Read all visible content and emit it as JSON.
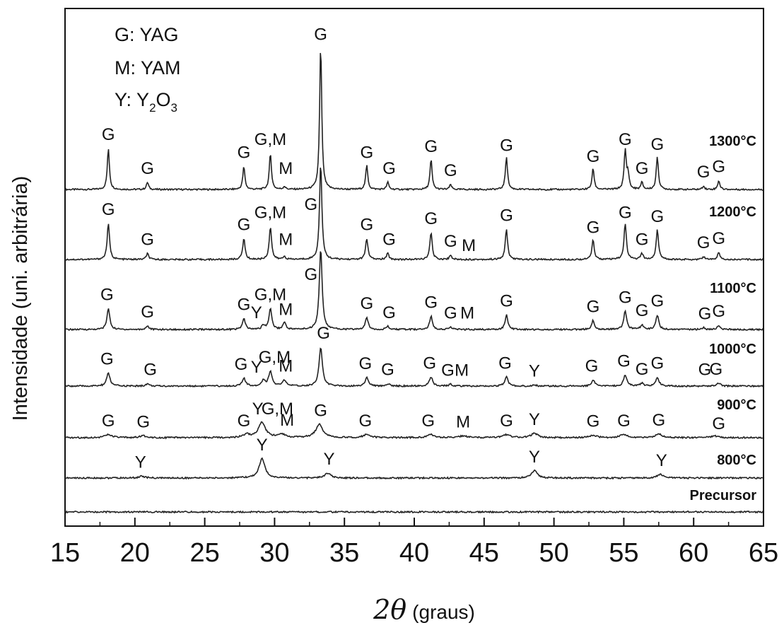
{
  "chart_data": {
    "type": "line",
    "title": "",
    "xlabel": {
      "symbol": "2θ",
      "unit": "(graus)"
    },
    "ylabel": "Intensidade (uni. arbitrária)",
    "xlim": [
      15,
      65
    ],
    "x_ticks": [
      "15",
      "20",
      "25",
      "30",
      "35",
      "40",
      "45",
      "50",
      "55",
      "60",
      "65"
    ],
    "grid": false,
    "legend": {
      "placement": "top-left",
      "entries": [
        {
          "letter": "G",
          "text": ": YAG"
        },
        {
          "letter": "M",
          "text": ": YAM"
        },
        {
          "letter": "Y",
          "text": ": Y",
          "sub1": "2",
          "mid": "O",
          "sub2": "3"
        }
      ]
    },
    "series": [
      {
        "name": "1300°C",
        "peaks": [
          [
            18.1,
            0.68
          ],
          [
            20.9,
            0.12
          ],
          [
            27.8,
            0.38
          ],
          [
            29.7,
            0.6
          ],
          [
            30.7,
            0.05
          ],
          [
            33.3,
            2.4
          ],
          [
            36.6,
            0.4
          ],
          [
            38.1,
            0.12
          ],
          [
            41.2,
            0.5
          ],
          [
            42.6,
            0.08
          ],
          [
            46.6,
            0.55
          ],
          [
            52.8,
            0.35
          ],
          [
            55.1,
            0.65
          ],
          [
            55.3,
            0.25
          ],
          [
            56.3,
            0.12
          ],
          [
            57.4,
            0.55
          ],
          [
            61.8,
            0.15
          ],
          [
            60.7,
            0.06
          ]
        ],
        "labels": [
          {
            "t": "G",
            "x": 18.1,
            "h": 0.68
          },
          {
            "t": "G",
            "x": 20.9,
            "h": 0.12
          },
          {
            "t": "G",
            "x": 27.8,
            "h": 0.38
          },
          {
            "t": "G,M",
            "x": 29.7,
            "h": 0.6
          },
          {
            "t": "M",
            "x": 30.8,
            "h": 0.12
          },
          {
            "t": "G",
            "x": 33.3,
            "h": 2.35
          },
          {
            "t": "G",
            "x": 36.6,
            "h": 0.38
          },
          {
            "t": "G",
            "x": 38.2,
            "h": 0.12
          },
          {
            "t": "G",
            "x": 41.2,
            "h": 0.48
          },
          {
            "t": "G",
            "x": 42.6,
            "h": 0.08
          },
          {
            "t": "G",
            "x": 46.6,
            "h": 0.5
          },
          {
            "t": "G",
            "x": 52.8,
            "h": 0.32
          },
          {
            "t": "G",
            "x": 55.1,
            "h": 0.6
          },
          {
            "t": "G",
            "x": 56.3,
            "h": 0.12
          },
          {
            "t": "G",
            "x": 57.4,
            "h": 0.52
          },
          {
            "t": "G",
            "x": 60.7,
            "h": 0.06
          },
          {
            "t": "G",
            "x": 61.8,
            "h": 0.15
          }
        ]
      },
      {
        "name": "1200°C",
        "peaks": [
          [
            18.1,
            0.6
          ],
          [
            20.9,
            0.1
          ],
          [
            27.8,
            0.35
          ],
          [
            29.7,
            0.55
          ],
          [
            30.7,
            0.05
          ],
          [
            33.3,
            1.6
          ],
          [
            36.6,
            0.35
          ],
          [
            38.1,
            0.1
          ],
          [
            41.2,
            0.45
          ],
          [
            42.6,
            0.07
          ],
          [
            46.6,
            0.5
          ],
          [
            52.8,
            0.32
          ],
          [
            55.1,
            0.6
          ],
          [
            56.3,
            0.1
          ],
          [
            57.4,
            0.5
          ],
          [
            61.8,
            0.12
          ],
          [
            60.7,
            0.05
          ]
        ],
        "labels": [
          {
            "t": "G",
            "x": 18.1,
            "h": 0.6
          },
          {
            "t": "G",
            "x": 20.9,
            "h": 0.1
          },
          {
            "t": "G",
            "x": 27.8,
            "h": 0.35
          },
          {
            "t": "G,M",
            "x": 29.7,
            "h": 0.55
          },
          {
            "t": "M",
            "x": 30.8,
            "h": 0.1
          },
          {
            "t": "G",
            "x": 32.6,
            "h": 0.68
          },
          {
            "t": "G",
            "x": 36.6,
            "h": 0.35
          },
          {
            "t": "G",
            "x": 38.2,
            "h": 0.1
          },
          {
            "t": "G",
            "x": 41.2,
            "h": 0.45
          },
          {
            "t": "G",
            "x": 42.6,
            "h": 0.07
          },
          {
            "t": "M",
            "x": 43.9,
            "h": 0.0
          },
          {
            "t": "G",
            "x": 46.6,
            "h": 0.5
          },
          {
            "t": "G",
            "x": 52.8,
            "h": 0.3
          },
          {
            "t": "G",
            "x": 55.1,
            "h": 0.55
          },
          {
            "t": "G",
            "x": 56.3,
            "h": 0.1
          },
          {
            "t": "G",
            "x": 57.4,
            "h": 0.48
          },
          {
            "t": "G",
            "x": 60.7,
            "h": 0.05
          },
          {
            "t": "G",
            "x": 61.8,
            "h": 0.12
          }
        ]
      },
      {
        "name": "1100°C",
        "peaks": [
          [
            18.1,
            0.35
          ],
          [
            20.9,
            0.06
          ],
          [
            27.8,
            0.18
          ],
          [
            29.2,
            0.07
          ],
          [
            29.7,
            0.35
          ],
          [
            30.7,
            0.12
          ],
          [
            33.3,
            1.35
          ],
          [
            36.6,
            0.2
          ],
          [
            38.1,
            0.05
          ],
          [
            41.2,
            0.22
          ],
          [
            42.6,
            0.04
          ],
          [
            46.6,
            0.24
          ],
          [
            52.8,
            0.15
          ],
          [
            55.1,
            0.32
          ],
          [
            56.3,
            0.08
          ],
          [
            57.4,
            0.24
          ],
          [
            61.8,
            0.07
          ],
          [
            60.7,
            0.03
          ]
        ],
        "labels": [
          {
            "t": "G",
            "x": 18.0,
            "h": 0.35
          },
          {
            "t": "G",
            "x": 20.9,
            "h": 0.06
          },
          {
            "t": "G",
            "x": 27.8,
            "h": 0.18
          },
          {
            "t": "Y",
            "x": 28.7,
            "h": 0.05
          },
          {
            "t": "G,M",
            "x": 29.7,
            "h": 0.35
          },
          {
            "t": "M",
            "x": 30.8,
            "h": 0.1
          },
          {
            "t": "G",
            "x": 32.6,
            "h": 0.68
          },
          {
            "t": "G",
            "x": 36.6,
            "h": 0.2
          },
          {
            "t": "G",
            "x": 38.2,
            "h": 0.05
          },
          {
            "t": "G",
            "x": 41.2,
            "h": 0.22
          },
          {
            "t": "G",
            "x": 42.6,
            "h": 0.04
          },
          {
            "t": "M",
            "x": 43.8,
            "h": 0.04
          },
          {
            "t": "G",
            "x": 46.6,
            "h": 0.24
          },
          {
            "t": "G",
            "x": 52.8,
            "h": 0.15
          },
          {
            "t": "G",
            "x": 55.1,
            "h": 0.3
          },
          {
            "t": "G",
            "x": 56.3,
            "h": 0.08
          },
          {
            "t": "G",
            "x": 57.4,
            "h": 0.24
          },
          {
            "t": "G",
            "x": 60.8,
            "h": 0.03
          },
          {
            "t": "G",
            "x": 61.8,
            "h": 0.07
          }
        ]
      },
      {
        "name": "1000°C",
        "peaks": [
          [
            18.1,
            0.22
          ],
          [
            20.9,
            0.04
          ],
          [
            27.8,
            0.13
          ],
          [
            29.2,
            0.1
          ],
          [
            29.7,
            0.25
          ],
          [
            30.7,
            0.1
          ],
          [
            33.3,
            0.65
          ],
          [
            36.6,
            0.14
          ],
          [
            38.1,
            0.04
          ],
          [
            41.2,
            0.15
          ],
          [
            42.6,
            0.03
          ],
          [
            46.6,
            0.15
          ],
          [
            48.6,
            0.02
          ],
          [
            52.8,
            0.1
          ],
          [
            55.1,
            0.18
          ],
          [
            56.3,
            0.05
          ],
          [
            57.4,
            0.15
          ],
          [
            61.8,
            0.05
          ]
        ],
        "labels": [
          {
            "t": "G",
            "x": 18.0,
            "h": 0.22
          },
          {
            "t": "G",
            "x": 21.1,
            "h": 0.04
          },
          {
            "t": "G",
            "x": 27.6,
            "h": 0.13
          },
          {
            "t": "Y",
            "x": 28.7,
            "h": 0.08
          },
          {
            "t": "G,M",
            "x": 30.0,
            "h": 0.25
          },
          {
            "t": "M",
            "x": 30.8,
            "h": 0.1
          },
          {
            "t": "G",
            "x": 33.5,
            "h": 0.65
          },
          {
            "t": "G",
            "x": 36.5,
            "h": 0.14
          },
          {
            "t": "G",
            "x": 38.1,
            "h": 0.04
          },
          {
            "t": "G",
            "x": 41.1,
            "h": 0.15
          },
          {
            "t": "G",
            "x": 42.4,
            "h": 0.03
          },
          {
            "t": "M",
            "x": 43.4,
            "h": 0.03
          },
          {
            "t": "G",
            "x": 46.5,
            "h": 0.15
          },
          {
            "t": "Y",
            "x": 48.6,
            "h": 0.02
          },
          {
            "t": "G",
            "x": 52.7,
            "h": 0.1
          },
          {
            "t": "G",
            "x": 55.0,
            "h": 0.18
          },
          {
            "t": "G",
            "x": 56.3,
            "h": 0.05
          },
          {
            "t": "G",
            "x": 57.4,
            "h": 0.15
          },
          {
            "t": "G",
            "x": 60.8,
            "h": 0.04
          },
          {
            "t": "G",
            "x": 61.6,
            "h": 0.05
          }
        ]
      },
      {
        "name": "900°C",
        "peaks": [
          [
            18.1,
            0.05
          ],
          [
            20.6,
            0.03
          ],
          [
            28.0,
            0.05
          ],
          [
            29.1,
            0.25
          ],
          [
            30.5,
            0.06
          ],
          [
            33.2,
            0.22
          ],
          [
            36.6,
            0.05
          ],
          [
            41.2,
            0.05
          ],
          [
            43.5,
            0.03
          ],
          [
            46.6,
            0.05
          ],
          [
            48.6,
            0.07
          ],
          [
            52.8,
            0.04
          ],
          [
            55.0,
            0.05
          ],
          [
            57.5,
            0.06
          ],
          [
            61.5,
            0.03
          ]
        ],
        "labels": [
          {
            "t": "G",
            "x": 18.1,
            "h": 0.05
          },
          {
            "t": "G",
            "x": 20.6,
            "h": 0.03
          },
          {
            "t": "G",
            "x": 27.8,
            "h": 0.05
          },
          {
            "t": "Y",
            "x": 28.8,
            "h": 0.25
          },
          {
            "t": "G,M",
            "x": 30.2,
            "h": 0.25
          },
          {
            "t": "M",
            "x": 30.9,
            "h": 0.06
          },
          {
            "t": "G",
            "x": 33.3,
            "h": 0.22
          },
          {
            "t": "G",
            "x": 36.5,
            "h": 0.05
          },
          {
            "t": "G",
            "x": 41.0,
            "h": 0.05
          },
          {
            "t": "M",
            "x": 43.5,
            "h": 0.03
          },
          {
            "t": "G",
            "x": 46.6,
            "h": 0.05
          },
          {
            "t": "Y",
            "x": 48.6,
            "h": 0.07
          },
          {
            "t": "G",
            "x": 52.8,
            "h": 0.04
          },
          {
            "t": "G",
            "x": 55.0,
            "h": 0.05
          },
          {
            "t": "G",
            "x": 57.5,
            "h": 0.06
          },
          {
            "t": "G",
            "x": 61.8,
            "h": 0.0
          }
        ]
      },
      {
        "name": "800°C",
        "peaks": [
          [
            20.5,
            0.03
          ],
          [
            29.1,
            0.32
          ],
          [
            33.8,
            0.08
          ],
          [
            48.6,
            0.12
          ],
          [
            57.6,
            0.06
          ]
        ],
        "labels": [
          {
            "t": "Y",
            "x": 20.4,
            "h": 0.03
          },
          {
            "t": "Y",
            "x": 29.1,
            "h": 0.32
          },
          {
            "t": "Y",
            "x": 33.9,
            "h": 0.08
          },
          {
            "t": "Y",
            "x": 48.6,
            "h": 0.12
          },
          {
            "t": "Y",
            "x": 57.7,
            "h": 0.06
          }
        ]
      },
      {
        "name": "Precursor",
        "peaks": [],
        "labels": []
      }
    ]
  }
}
